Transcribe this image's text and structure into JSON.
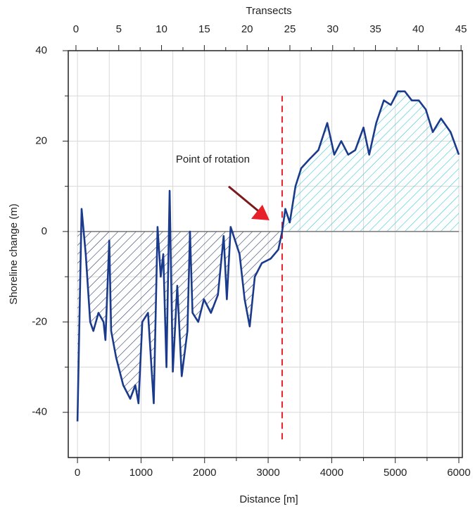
{
  "chart_data": {
    "type": "line",
    "xlabel": "Distance [m]",
    "ylabel": "Shoreline change (m)",
    "x2label": "Transects",
    "annotation": {
      "text": "Point of rotation",
      "x": 3220,
      "y": 0
    },
    "rotation_line": {
      "x": 3220,
      "y": [
        -46,
        30
      ],
      "color": "#e8202a"
    },
    "x": [
      0,
      65,
      130,
      200,
      250,
      330,
      410,
      440,
      500,
      530,
      610,
      720,
      830,
      910,
      960,
      1020,
      1110,
      1200,
      1260,
      1310,
      1350,
      1400,
      1450,
      1500,
      1570,
      1640,
      1730,
      1770,
      1810,
      1900,
      1990,
      2100,
      2210,
      2300,
      2350,
      2410,
      2480,
      2550,
      2630,
      2710,
      2790,
      2900,
      3040,
      3160,
      3220,
      3270,
      3340,
      3430,
      3520,
      3650,
      3790,
      3930,
      4040,
      4150,
      4260,
      4370,
      4500,
      4590,
      4700,
      4820,
      4930,
      5040,
      5150,
      5260,
      5370,
      5480,
      5590,
      5720,
      5870,
      6000
    ],
    "series": [
      {
        "color": "#1a3a8c",
        "negative_fill": "#2d3f66",
        "positive_fill": "#3cc6d6",
        "values": [
          -42,
          5,
          -5,
          -20,
          -22,
          -18,
          -20,
          -24,
          -2,
          -22,
          -28,
          -34,
          -37,
          -34,
          -38,
          -20,
          -18,
          -38,
          1,
          -10,
          -5,
          -30,
          9,
          -31,
          -12,
          -32,
          -22,
          0,
          -18,
          -20,
          -15,
          -18,
          -14,
          -1,
          -15,
          1,
          -2,
          -5,
          -15,
          -21,
          -10,
          -7,
          -6,
          -4,
          0,
          5,
          2,
          10,
          14,
          16,
          18,
          24,
          17,
          20,
          17,
          18,
          23,
          17,
          24,
          29,
          28,
          31,
          31,
          29,
          29,
          27,
          22,
          25,
          22,
          17
        ]
      }
    ],
    "baseline": 0,
    "xlim": [
      -145,
      6055
    ],
    "xticks": [
      0,
      1000,
      2000,
      3000,
      4000,
      5000,
      6000
    ],
    "xminor_ticks": [
      500,
      1500,
      2500,
      3500,
      4500,
      5500
    ],
    "x2lim": [
      -0.9,
      45.15
    ],
    "x2ticks": [
      0,
      5,
      10,
      15,
      20,
      25,
      30,
      35,
      40,
      45
    ],
    "x2minor_ticks": [
      2.5,
      7.5,
      12.5,
      17.5,
      22.5,
      27.5,
      32.5,
      37.5,
      42.5
    ],
    "ylim": [
      -50,
      40
    ],
    "yticks": [
      -40,
      -20,
      0,
      20,
      40
    ],
    "yminor_ticks": [
      -30,
      -10,
      10,
      30
    ],
    "grid": true
  }
}
